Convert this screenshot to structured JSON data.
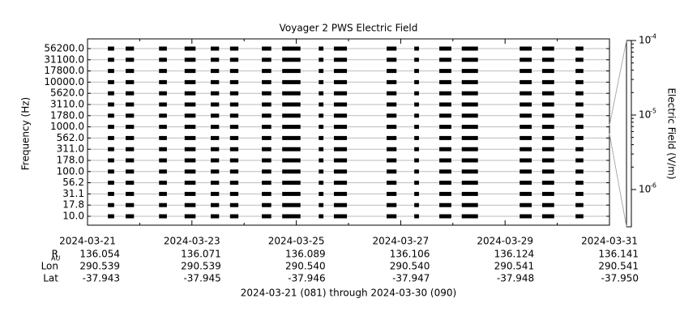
{
  "chart_data": {
    "type": "channel-coverage",
    "title": "Voyager 2 PWS Electric Field",
    "ylabel": "Frequency (Hz)",
    "y2label": "Electric Field (V/m)",
    "xlim": [
      0,
      10
    ],
    "xticks": [
      {
        "value": 0,
        "label": "2024-03-21"
      },
      {
        "value": 2,
        "label": "2024-03-23"
      },
      {
        "value": 4,
        "label": "2024-03-25"
      },
      {
        "value": 6,
        "label": "2024-03-27"
      },
      {
        "value": 8,
        "label": "2024-03-29"
      },
      {
        "value": 10,
        "label": "2024-03-31"
      }
    ],
    "yticks": [
      {
        "value": 56200,
        "label": "56200.0"
      },
      {
        "value": 31100,
        "label": "31100.0"
      },
      {
        "value": 17800,
        "label": "17800.0"
      },
      {
        "value": 10000,
        "label": "10000.0"
      },
      {
        "value": 5620,
        "label": "5620.0"
      },
      {
        "value": 3110,
        "label": "3110.0"
      },
      {
        "value": 1780,
        "label": "1780.0"
      },
      {
        "value": 1000,
        "label": "1000.0"
      },
      {
        "value": 562,
        "label": "562.0"
      },
      {
        "value": 311,
        "label": "311.0"
      },
      {
        "value": 178,
        "label": "178.0"
      },
      {
        "value": 100,
        "label": "100.0"
      },
      {
        "value": 56.2,
        "label": "56.2"
      },
      {
        "value": 31.1,
        "label": "31.1"
      },
      {
        "value": 17.8,
        "label": "17.8"
      },
      {
        "value": 10,
        "label": "10.0"
      }
    ],
    "y2scale": "log",
    "y2lim": [
      3.16e-07,
      0.0001
    ],
    "y2ticks": [
      {
        "value": 0.0001,
        "label": "10",
        "exponent": "-4"
      },
      {
        "value": 1e-05,
        "label": "10",
        "exponent": "-5"
      },
      {
        "value": 1e-06,
        "label": "10",
        "exponent": "-6"
      }
    ],
    "color": "#000000",
    "segments": [
      [
        0.39,
        0.51
      ],
      [
        0.73,
        0.89
      ],
      [
        1.37,
        1.52
      ],
      [
        1.86,
        2.07
      ],
      [
        2.36,
        2.52
      ],
      [
        2.73,
        2.89
      ],
      [
        3.34,
        3.52
      ],
      [
        3.73,
        4.08
      ],
      [
        4.43,
        4.52
      ],
      [
        4.72,
        4.97
      ],
      [
        5.73,
        5.92
      ],
      [
        6.26,
        6.35
      ],
      [
        6.74,
        6.97
      ],
      [
        7.17,
        7.48
      ],
      [
        8.28,
        8.51
      ],
      [
        8.71,
        8.94
      ],
      [
        9.35,
        9.5
      ]
    ],
    "ephemeris": [
      {
        "label": "R",
        "sub": "AU",
        "values": [
          "136.054",
          "136.071",
          "136.089",
          "136.106",
          "136.124",
          "136.141"
        ]
      },
      {
        "label": "Lon",
        "values": [
          "290.539",
          "290.539",
          "290.540",
          "290.540",
          "290.541",
          "290.541"
        ]
      },
      {
        "label": "Lat",
        "values": [
          "-37.943",
          "-37.945",
          "-37.946",
          "-37.947",
          "-37.948",
          "-37.950"
        ]
      }
    ],
    "footer": "2024-03-21 (081) through 2024-03-30 (090)"
  }
}
